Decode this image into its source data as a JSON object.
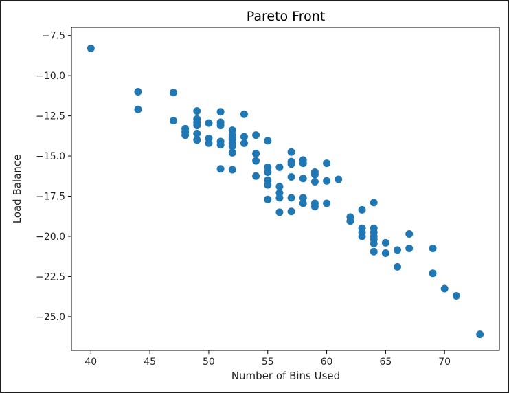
{
  "chart_data": {
    "type": "scatter",
    "title": "Pareto Front",
    "xlabel": "Number of Bins Used",
    "ylabel": "Load Balance",
    "xlim": [
      38.35,
      74.65
    ],
    "ylim": [
      -27.1,
      -7.0
    ],
    "xticks": [
      40,
      45,
      50,
      55,
      60,
      65,
      70
    ],
    "xtick_labels": [
      "40",
      "45",
      "50",
      "55",
      "60",
      "65",
      "70"
    ],
    "yticks": [
      -7.5,
      -10.0,
      -12.5,
      -15.0,
      -17.5,
      -20.0,
      -22.5,
      -25.0
    ],
    "ytick_labels": [
      "−7.5",
      "−10.0",
      "−12.5",
      "−15.0",
      "−17.5",
      "−20.0",
      "−22.5",
      "−25.0"
    ],
    "grid": false,
    "marker_color": "#1f77b4",
    "points": [
      [
        40,
        -8.3
      ],
      [
        44,
        -11.0
      ],
      [
        44,
        -12.1
      ],
      [
        47,
        -11.05
      ],
      [
        47,
        -12.8
      ],
      [
        48,
        -13.3
      ],
      [
        48,
        -13.5
      ],
      [
        48,
        -13.7
      ],
      [
        49,
        -12.2
      ],
      [
        49,
        -12.7
      ],
      [
        49,
        -12.9
      ],
      [
        49,
        -13.1
      ],
      [
        49,
        -13.6
      ],
      [
        49,
        -14.0
      ],
      [
        50,
        -12.95
      ],
      [
        50,
        -13.9
      ],
      [
        50,
        -14.2
      ],
      [
        51,
        -12.25
      ],
      [
        51,
        -12.9
      ],
      [
        51,
        -13.1
      ],
      [
        51,
        -14.1
      ],
      [
        51,
        -14.3
      ],
      [
        51,
        -15.8
      ],
      [
        52,
        -13.4
      ],
      [
        52,
        -13.7
      ],
      [
        52,
        -13.9
      ],
      [
        52,
        -14.0
      ],
      [
        52,
        -14.2
      ],
      [
        52,
        -14.4
      ],
      [
        52,
        -14.8
      ],
      [
        52,
        -15.85
      ],
      [
        53,
        -12.4
      ],
      [
        53,
        -13.8
      ],
      [
        53,
        -14.2
      ],
      [
        54,
        -13.7
      ],
      [
        54,
        -14.85
      ],
      [
        54,
        -15.3
      ],
      [
        54,
        -16.25
      ],
      [
        55,
        -14.05
      ],
      [
        55,
        -15.7
      ],
      [
        55,
        -16.0
      ],
      [
        55,
        -16.5
      ],
      [
        55,
        -16.8
      ],
      [
        55,
        -17.7
      ],
      [
        56,
        -15.7
      ],
      [
        56,
        -16.9
      ],
      [
        56,
        -17.3
      ],
      [
        56,
        -17.6
      ],
      [
        56,
        -18.5
      ],
      [
        57,
        -14.75
      ],
      [
        57,
        -15.35
      ],
      [
        57,
        -15.5
      ],
      [
        57,
        -16.3
      ],
      [
        57,
        -17.6
      ],
      [
        57,
        -18.45
      ],
      [
        58,
        -15.25
      ],
      [
        58,
        -15.45
      ],
      [
        58,
        -16.4
      ],
      [
        58,
        -17.6
      ],
      [
        58,
        -17.95
      ],
      [
        59,
        -16.0
      ],
      [
        59,
        -16.15
      ],
      [
        59,
        -16.6
      ],
      [
        59,
        -17.95
      ],
      [
        59,
        -18.15
      ],
      [
        60,
        -15.45
      ],
      [
        60,
        -16.55
      ],
      [
        60,
        -17.95
      ],
      [
        61,
        -16.45
      ],
      [
        62,
        -18.8
      ],
      [
        62,
        -19.05
      ],
      [
        63,
        -18.35
      ],
      [
        63,
        -19.5
      ],
      [
        63,
        -19.75
      ],
      [
        63,
        -20.0
      ],
      [
        64,
        -17.9
      ],
      [
        64,
        -19.5
      ],
      [
        64,
        -19.75
      ],
      [
        64,
        -20.0
      ],
      [
        64,
        -20.2
      ],
      [
        64,
        -20.45
      ],
      [
        64,
        -20.95
      ],
      [
        65,
        -20.4
      ],
      [
        65,
        -21.05
      ],
      [
        66,
        -20.85
      ],
      [
        66,
        -21.9
      ],
      [
        67,
        -19.85
      ],
      [
        67,
        -20.75
      ],
      [
        69,
        -20.75
      ],
      [
        69,
        -22.3
      ],
      [
        70,
        -23.25
      ],
      [
        71,
        -23.7
      ],
      [
        73,
        -26.1
      ]
    ]
  }
}
